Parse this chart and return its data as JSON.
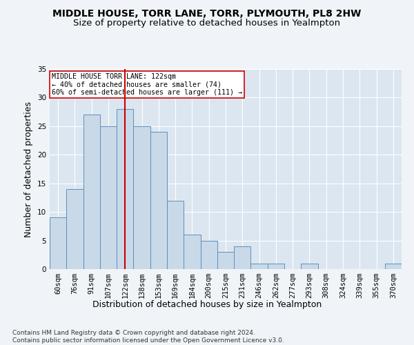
{
  "title": "MIDDLE HOUSE, TORR LANE, TORR, PLYMOUTH, PL8 2HW",
  "subtitle": "Size of property relative to detached houses in Yealmpton",
  "xlabel": "Distribution of detached houses by size in Yealmpton",
  "ylabel": "Number of detached properties",
  "categories": [
    "60sqm",
    "76sqm",
    "91sqm",
    "107sqm",
    "122sqm",
    "138sqm",
    "153sqm",
    "169sqm",
    "184sqm",
    "200sqm",
    "215sqm",
    "231sqm",
    "246sqm",
    "262sqm",
    "277sqm",
    "293sqm",
    "308sqm",
    "324sqm",
    "339sqm",
    "355sqm",
    "370sqm"
  ],
  "values": [
    9,
    14,
    27,
    25,
    28,
    25,
    24,
    12,
    6,
    5,
    3,
    4,
    1,
    1,
    0,
    1,
    0,
    0,
    0,
    0,
    1
  ],
  "bar_color": "#c9d9e8",
  "bar_edge_color": "#5a8fc0",
  "vline_x_index": 4,
  "vline_color": "#cc0000",
  "annotation_text": "MIDDLE HOUSE TORR LANE: 122sqm\n← 40% of detached houses are smaller (74)\n60% of semi-detached houses are larger (111) →",
  "annotation_box_color": "#ffffff",
  "annotation_box_edge_color": "#cc0000",
  "ylim": [
    0,
    35
  ],
  "yticks": [
    0,
    5,
    10,
    15,
    20,
    25,
    30,
    35
  ],
  "footer": "Contains HM Land Registry data © Crown copyright and database right 2024.\nContains public sector information licensed under the Open Government Licence v3.0.",
  "fig_bg_color": "#f0f4f8",
  "bg_color": "#dce6f0",
  "title_fontsize": 10,
  "subtitle_fontsize": 9.5,
  "axis_label_fontsize": 9,
  "tick_fontsize": 7.5,
  "footer_fontsize": 6.5
}
